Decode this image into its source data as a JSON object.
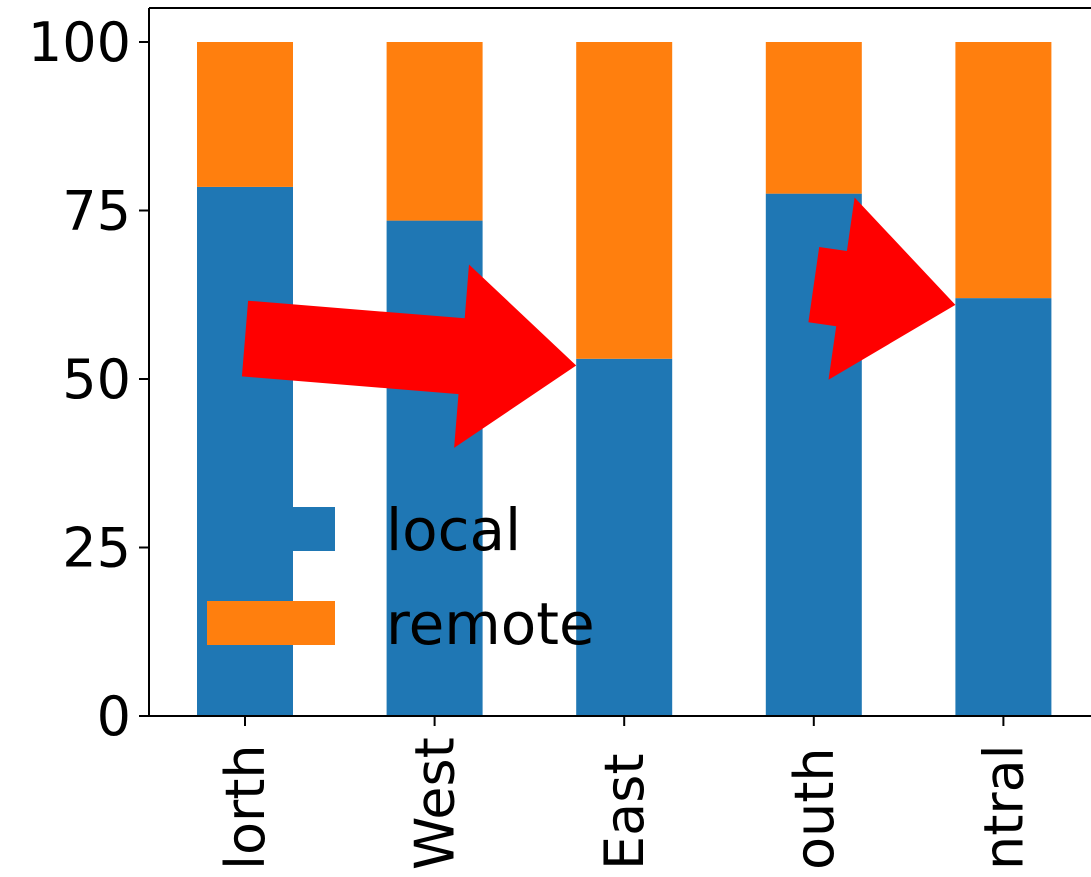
{
  "chart_data": {
    "type": "bar",
    "stacked": true,
    "categories": [
      "North",
      "West",
      "East",
      "South",
      "Central"
    ],
    "category_labels_visible": [
      "lorth",
      "West",
      "East",
      "outh",
      "ntral"
    ],
    "series": [
      {
        "name": "local",
        "values": [
          78.5,
          73.5,
          53,
          77.5,
          62
        ],
        "color": "#1f77b4"
      },
      {
        "name": "remote",
        "values": [
          21.5,
          26.5,
          47,
          22.5,
          38
        ],
        "color": "#ff7f0e"
      }
    ],
    "yticks": [
      "0",
      "25",
      "50",
      "75",
      "100"
    ],
    "ylim": [
      0,
      105
    ],
    "grid": false,
    "legend_position": "lower-left",
    "annotations": [
      {
        "type": "arrow",
        "color": "#ff0000",
        "from": {
          "category": "North",
          "y": 56
        },
        "to": {
          "category": "East",
          "y": 52
        }
      },
      {
        "type": "arrow",
        "color": "#ff0000",
        "from": {
          "category": "South",
          "y": 64
        },
        "to": {
          "category": "Central",
          "y": 61
        }
      }
    ]
  }
}
